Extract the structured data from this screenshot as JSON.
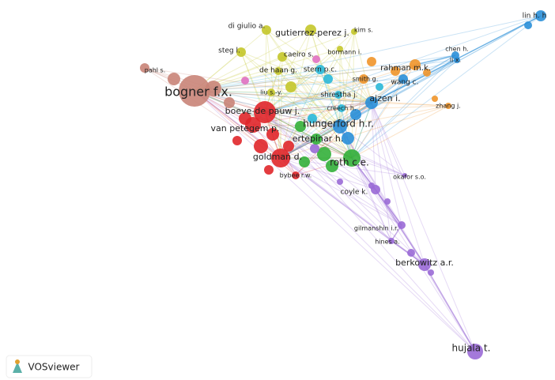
{
  "nodes": [
    {
      "label": "lin h. h"
    },
    {
      "label": "di giulio a."
    },
    {
      "label": "gutierrez-perez j."
    },
    {
      "label": "kim s."
    },
    {
      "label": "bormann i."
    },
    {
      "label": "steg l."
    },
    {
      "label": "caeiro s."
    },
    {
      "label": "chen h."
    },
    {
      "label": "li x."
    },
    {
      "label": "pahl s."
    },
    {
      "label": "de haan g."
    },
    {
      "label": "stern p.c."
    },
    {
      "label": "rahman m.k."
    },
    {
      "label": "smith g."
    },
    {
      "label": "wang c."
    },
    {
      "label": "bogner f.x."
    },
    {
      "label": "liu s.-y."
    },
    {
      "label": "shrestha j."
    },
    {
      "label": "ajzen i."
    },
    {
      "label": "zhang j."
    },
    {
      "label": "creech h."
    },
    {
      "label": "boeve-de pauw j."
    },
    {
      "label": "hungerford h.r."
    },
    {
      "label": "van petegem p."
    },
    {
      "label": "ertepinar h."
    },
    {
      "label": "goldman d."
    },
    {
      "label": "roth c.e."
    },
    {
      "label": "okafor s.o."
    },
    {
      "label": "bybee r.w."
    },
    {
      "label": "coyle k."
    },
    {
      "label": "gilmanshin i.r."
    },
    {
      "label": "hines a."
    },
    {
      "label": "berkowitz a.r."
    },
    {
      "label": "hujala t."
    }
  ],
  "logo": {
    "text": "VOSviewer"
  }
}
